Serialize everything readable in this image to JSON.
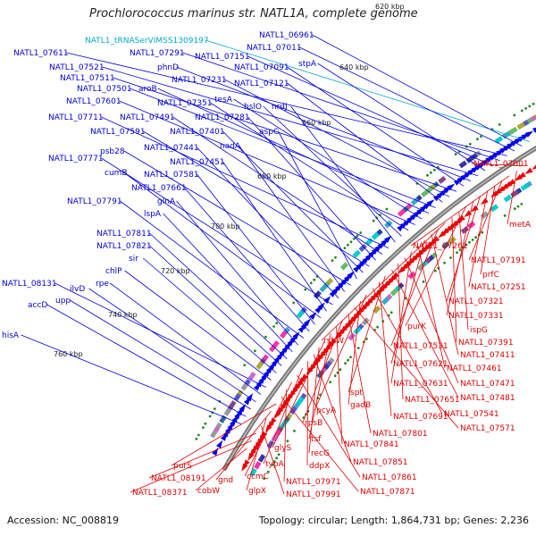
{
  "title": "Prochlorococcus marinus str. NATL1A, complete genome",
  "footer": {
    "accession": "Accession: NC_008819",
    "summary": "Topology: circular; Length: 1,864,731 bp; Genes: 2,236"
  },
  "colors": {
    "blue": "#0000dd",
    "red": "#dd0000",
    "cyan": "#00aacc",
    "ring": "#777777"
  },
  "kbp_labels": [
    "620 kbp",
    "640 kbp",
    "660 kbp",
    "680 kbp",
    "700 kbp",
    "720 kbp",
    "740 kbp",
    "760 kbp"
  ],
  "blue_labels": [
    {
      "text": "NATL1_tRNASerVIMSS1309197",
      "color": "cyan"
    },
    {
      "text": "NATL1_06961",
      "color": "blue"
    },
    {
      "text": "NATL1_07011",
      "color": "blue"
    },
    {
      "text": "NATL1_07611",
      "color": "blue"
    },
    {
      "text": "NATL1_07291",
      "color": "blue"
    },
    {
      "text": "NATL1_07151",
      "color": "blue"
    },
    {
      "text": "stpA",
      "color": "blue"
    },
    {
      "text": "NATL1_07521",
      "color": "blue"
    },
    {
      "text": "phnD",
      "color": "blue"
    },
    {
      "text": "NATL1_07091",
      "color": "blue"
    },
    {
      "text": "NATL1_07511",
      "color": "blue"
    },
    {
      "text": "NATL1_07231",
      "color": "blue"
    },
    {
      "text": "NATL1_07121",
      "color": "blue"
    },
    {
      "text": "NATL1_07501",
      "color": "blue"
    },
    {
      "text": "aroB",
      "color": "blue"
    },
    {
      "text": "tesA",
      "color": "blue"
    },
    {
      "text": "NATL1_07601",
      "color": "blue"
    },
    {
      "text": "NATL1_07351",
      "color": "blue"
    },
    {
      "text": "hslO",
      "color": "blue"
    },
    {
      "text": "nrdJ",
      "color": "blue"
    },
    {
      "text": "NATL1_07711",
      "color": "blue"
    },
    {
      "text": "NATL1_07491",
      "color": "blue"
    },
    {
      "text": "NATL1_07281",
      "color": "blue"
    },
    {
      "text": "NATL1_07591",
      "color": "blue"
    },
    {
      "text": "NATL1_07401",
      "color": "blue"
    },
    {
      "text": "aspC",
      "color": "blue"
    },
    {
      "text": "psb28",
      "color": "blue"
    },
    {
      "text": "nadA",
      "color": "blue"
    },
    {
      "text": "NATL1_07441",
      "color": "blue"
    },
    {
      "text": "NATL1_07771",
      "color": "blue"
    },
    {
      "text": "NATL1_07451",
      "color": "blue"
    },
    {
      "text": "cumB",
      "color": "blue"
    },
    {
      "text": "NATL1_07581",
      "color": "blue"
    },
    {
      "text": "NATL1_07661",
      "color": "blue"
    },
    {
      "text": "NATL1_07791",
      "color": "blue"
    },
    {
      "text": "glnA",
      "color": "blue"
    },
    {
      "text": "lspA",
      "color": "blue"
    },
    {
      "text": "NATL1_07811",
      "color": "blue"
    },
    {
      "text": "NATL1_07821",
      "color": "blue"
    },
    {
      "text": "sir",
      "color": "blue"
    },
    {
      "text": "chlP",
      "color": "blue"
    },
    {
      "text": "NATL1_08131",
      "color": "blue"
    },
    {
      "text": "rpe",
      "color": "blue"
    },
    {
      "text": "ilvD",
      "color": "blue"
    },
    {
      "text": "upp",
      "color": "blue"
    },
    {
      "text": "accD",
      "color": "blue"
    },
    {
      "text": "hisA",
      "color": "blue"
    }
  ],
  "red_labels": [
    "NATL1_07001",
    "metA",
    "NATL1_07261",
    "NATL1_07191",
    "prfC",
    "NATL1_07251",
    "NATL1_07321",
    "NATL1_07331",
    "purK",
    "ispG",
    "NATL1_07391",
    "rsbW",
    "NATL1_07531",
    "NATL1_07411",
    "NATL1_07621",
    "NATL1_07461",
    "NATL1_07631",
    "NATL1_07471",
    "NATL1_07651",
    "NATL1_07481",
    "spt",
    "NATL1_07691",
    "NATL1_07541",
    "pcyA",
    "gadB",
    "NATL1_07571",
    "NATL1_07801",
    "rpsB",
    "NATL1_07841",
    "tsf",
    "glyS",
    "recG",
    "NATL1_07851",
    "ddpX",
    "typA",
    "NATL1_07861",
    "ccmC",
    "NATL1_07971",
    "NATL1_07871",
    "purS",
    "gnd",
    "glpX",
    "NATL1_07991",
    "NATL1_08191",
    "NATL1_08371",
    "cobW"
  ]
}
